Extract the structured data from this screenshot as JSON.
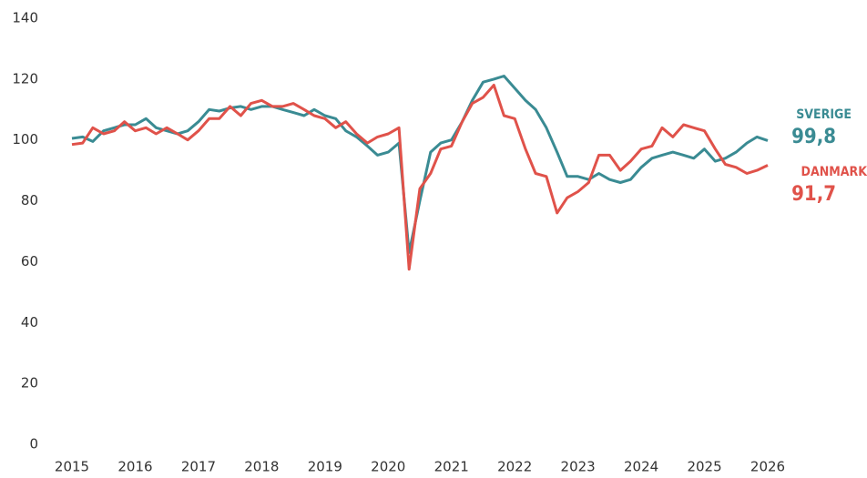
{
  "chart_data": {
    "type": "line",
    "x": [
      2015,
      2015.17,
      2015.33,
      2015.5,
      2015.67,
      2015.83,
      2016,
      2016.17,
      2016.33,
      2016.5,
      2016.67,
      2016.83,
      2017,
      2017.17,
      2017.33,
      2017.5,
      2017.67,
      2017.83,
      2018,
      2018.17,
      2018.33,
      2018.5,
      2018.67,
      2018.83,
      2019,
      2019.17,
      2019.33,
      2019.5,
      2019.67,
      2019.83,
      2020,
      2020.17,
      2020.33,
      2020.5,
      2020.67,
      2020.83,
      2021,
      2021.17,
      2021.33,
      2021.5,
      2021.67,
      2021.83,
      2022,
      2022.17,
      2022.33,
      2022.5,
      2022.67,
      2022.83,
      2023,
      2023.17,
      2023.33,
      2023.5,
      2023.67,
      2023.83,
      2024,
      2024.17,
      2024.33,
      2024.5,
      2024.67,
      2024.83,
      2025,
      2025.17,
      2025.33,
      2025.5,
      2025.67,
      2025.83,
      2026
    ],
    "series": [
      {
        "name": "SVERIGE",
        "color": "#3a8b93",
        "end_value_label": "99,8",
        "values": [
          100.5,
          101,
          99.5,
          103,
          104,
          105,
          105,
          107,
          104,
          103,
          102,
          103,
          106,
          110,
          109.5,
          110.5,
          111,
          110,
          111,
          111,
          110,
          109,
          108,
          110,
          108,
          107,
          103,
          101,
          98,
          95,
          96,
          99,
          63,
          80,
          96,
          99,
          100,
          106,
          113,
          119,
          120,
          121,
          117,
          113,
          110,
          104,
          96,
          88,
          88,
          87,
          89,
          87,
          86,
          87,
          91,
          94,
          95,
          96,
          95,
          94,
          97,
          93,
          94,
          96,
          99,
          101,
          99.8
        ]
      },
      {
        "name": "DANMARK",
        "color": "#e0524a",
        "end_value_label": "91,7",
        "values": [
          98.5,
          99,
          104,
          102,
          103,
          106,
          103,
          104,
          102,
          104,
          102,
          100,
          103,
          107,
          107,
          111,
          108,
          112,
          113,
          111,
          111,
          112,
          110,
          108,
          107,
          104,
          106,
          102,
          99,
          101,
          102,
          104,
          57.5,
          84,
          89,
          97,
          98,
          106,
          112,
          114,
          118,
          108,
          107,
          97,
          89,
          88,
          76,
          81,
          83,
          86,
          95,
          95,
          90,
          93,
          97,
          98,
          104,
          101,
          105,
          104,
          103,
          97,
          92,
          91,
          89,
          90,
          91.7
        ]
      }
    ],
    "xlim": [
      2015,
      2026
    ],
    "xticks": [
      2015,
      2016,
      2017,
      2018,
      2019,
      2020,
      2021,
      2022,
      2023,
      2024,
      2025,
      2026
    ],
    "ylim": [
      0,
      140
    ],
    "yticks": [
      0,
      20,
      40,
      60,
      80,
      100,
      120,
      140
    ]
  }
}
